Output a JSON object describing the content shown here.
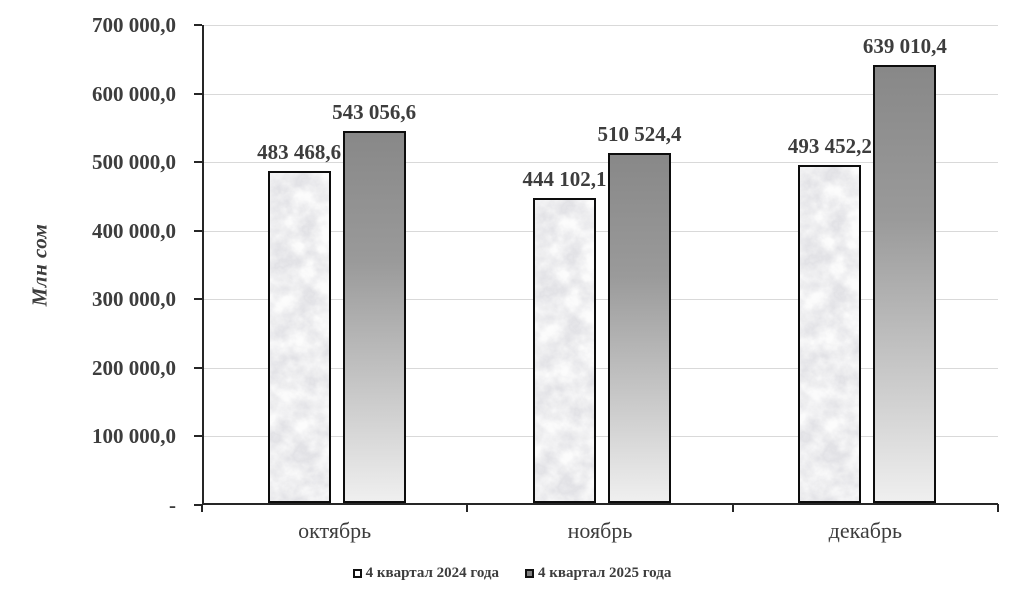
{
  "chart_data": {
    "type": "bar",
    "title": "",
    "categories": [
      "октябрь",
      "ноябрь",
      "декабрь"
    ],
    "series": [
      {
        "name": "4 квартал 2024 года",
        "values": [
          483468.6,
          444102.1,
          493452.2
        ],
        "labels": [
          "483 468,6",
          "444 102,1",
          "493 452,2"
        ],
        "fill": "white-marble"
      },
      {
        "name": "4 квартал 2025 года",
        "values": [
          543056.6,
          510524.4,
          639010.4
        ],
        "labels": [
          "543 056,6",
          "510 524,4",
          "639 010,4"
        ],
        "fill": "gray-gradient"
      }
    ],
    "xlabel": "",
    "ylabel": "Млн сом",
    "ylim": [
      0,
      700000
    ],
    "ytick_step": 100000,
    "ytick_labels": [
      "700 000,0",
      "600 000,0",
      "500 000,0",
      "400 000,0",
      "300 000,0",
      "200 000,0",
      "100 000,0",
      "-"
    ],
    "grid": true,
    "legend_position": "bottom"
  },
  "colors": {
    "background": "#ffffff",
    "gridline": "#d9d9d9",
    "axis": "#262626",
    "text": "#3d3d3d",
    "bar_border": "#0d0d0d",
    "gradient_top": "#888888",
    "gradient_bottom": "#efefef",
    "marble_base": "#f4f4f5",
    "legend_marker_2024": "#ffffff",
    "legend_marker_2025": "#808080"
  }
}
